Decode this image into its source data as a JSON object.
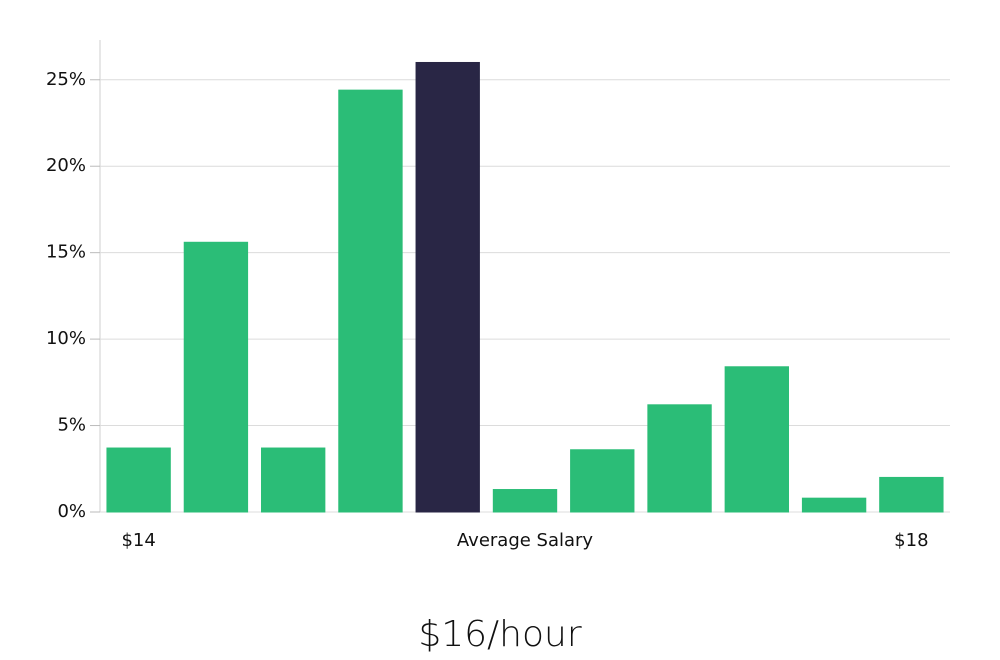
{
  "chart_data": {
    "type": "bar",
    "title": "$16/hour",
    "categories": [
      "$14",
      null,
      null,
      null,
      null,
      "Average Salary",
      null,
      null,
      null,
      null,
      "$18"
    ],
    "values": [
      3.7,
      15.6,
      3.7,
      24.4,
      26.0,
      1.3,
      3.6,
      6.2,
      8.4,
      0.8,
      2.0
    ],
    "colors": [
      "#2bbd77",
      "#2bbd77",
      "#2bbd77",
      "#2bbd77",
      "#292645",
      "#2bbd77",
      "#2bbd77",
      "#2bbd77",
      "#2bbd77",
      "#2bbd77",
      "#2bbd77"
    ],
    "ylim": [
      0,
      27.3
    ],
    "yticks": [
      {
        "value": 0,
        "label": "0%"
      },
      {
        "value": 5,
        "label": "5%"
      },
      {
        "value": 10,
        "label": "10%"
      },
      {
        "value": 15,
        "label": "15%"
      },
      {
        "value": 20,
        "label": "20%"
      },
      {
        "value": 25,
        "label": "25%"
      }
    ],
    "grid": true
  }
}
